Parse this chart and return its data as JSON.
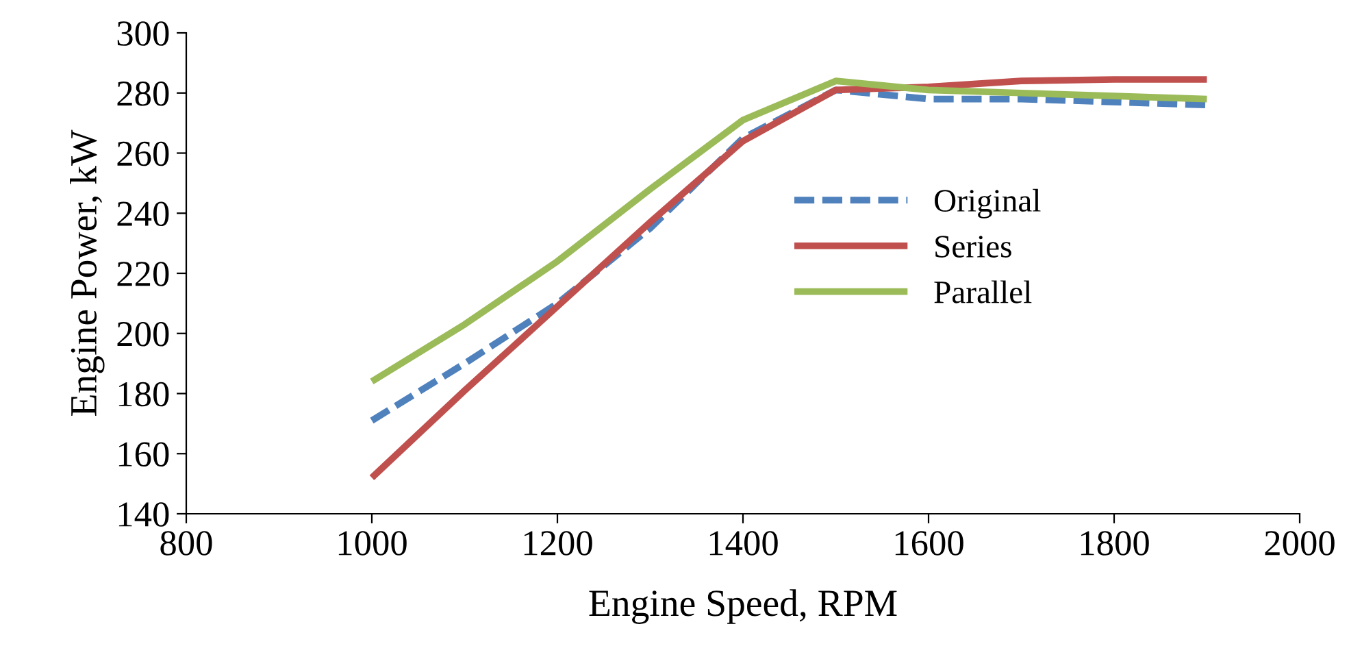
{
  "chart_data": {
    "type": "line",
    "xlabel": "Engine Speed, RPM",
    "ylabel": "Engine Power, kW",
    "x": [
      1000,
      1100,
      1200,
      1300,
      1400,
      1500,
      1600,
      1700,
      1800,
      1900
    ],
    "series": [
      {
        "name": "Original",
        "color": "#4f81bd",
        "line_style": "dashed",
        "values": [
          171,
          190,
          210,
          235,
          265,
          281,
          278,
          278,
          277,
          276
        ]
      },
      {
        "name": "Series",
        "color": "#c0504d",
        "line_style": "solid",
        "values": [
          152,
          181,
          209,
          237,
          264,
          281,
          282,
          284,
          284.5,
          284.5
        ]
      },
      {
        "name": "Parallel",
        "color": "#9bbb59",
        "line_style": "solid",
        "values": [
          184,
          203,
          224,
          248,
          271,
          284,
          281,
          280,
          279,
          278
        ]
      }
    ],
    "xlim": [
      800,
      2000
    ],
    "xticks": [
      800,
      1000,
      1200,
      1400,
      1600,
      1800,
      2000
    ],
    "ylim": [
      140,
      300
    ],
    "yticks": [
      140,
      160,
      180,
      200,
      220,
      240,
      260,
      280,
      300
    ],
    "grid": false,
    "legend": "center",
    "marker": "none"
  }
}
